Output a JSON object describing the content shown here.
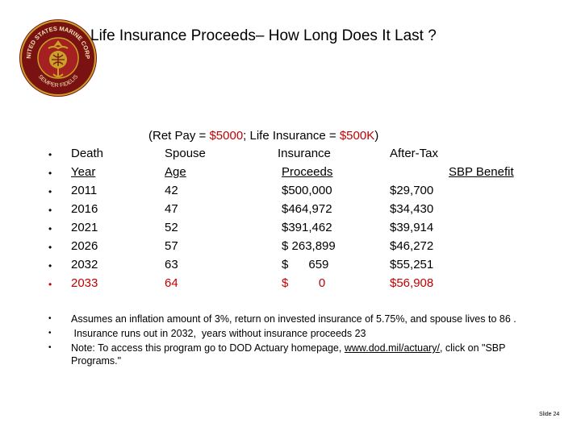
{
  "header": {
    "title": "Life Insurance Proceeds– How Long Does It Last ?",
    "seal_text_top": "UNITED STATES MARINE CORPS",
    "seal_text_bottom": "SEMPER FIDELIS"
  },
  "subtitle": {
    "prefix": "(Ret Pay = ",
    "ret_pay": "$5000",
    "middle": "; Life Insurance = ",
    "life_insurance": "$500K",
    "suffix": ")"
  },
  "table": {
    "header_row1": [
      "Death",
      "Spouse",
      "Insurance",
      "After-Tax"
    ],
    "header_row2": [
      "Year",
      "Age",
      "Proceeds",
      "SBP Benefit"
    ],
    "rows": [
      [
        "2011",
        "42",
        "$500,000",
        "$29,700"
      ],
      [
        "2016",
        "47",
        "$464,972",
        "$34,430"
      ],
      [
        "2021",
        "52",
        "$391,462",
        "$39,914"
      ],
      [
        "2026",
        "57",
        "$ 263,899",
        "$46,272"
      ],
      [
        "2032",
        "63",
        "$      659",
        "$55,251"
      ],
      [
        "2033",
        "64",
        "$         0",
        "$56,908"
      ]
    ]
  },
  "notes": {
    "note1": "Assumes an inflation amount of 3%, return on invested insurance of 5.75%, and spouse lives to 86 .",
    "note2": " Insurance runs out in 2032,  years without insurance proceeds 23",
    "note3_prefix": "Note:  To access this program go to DOD Actuary homepage, ",
    "note3_link": "www.dod.mil/actuary/",
    "note3_suffix": ", click on \"SBP Programs.\""
  },
  "footer": {
    "slide_number": "Slide 24"
  },
  "colors": {
    "accent_red": "#c00000",
    "seal_red": "#8b1a1a",
    "seal_gold": "#c9a227"
  }
}
